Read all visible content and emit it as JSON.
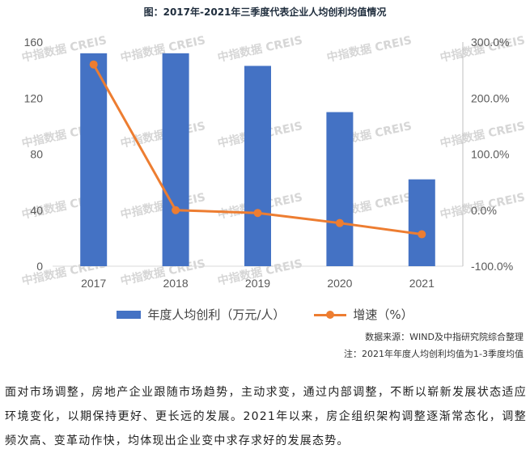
{
  "chart_title": "图：2017年-2021年三季度代表企业人均创利均值情况",
  "chart_data": {
    "type": "bar",
    "categories": [
      "2017",
      "2018",
      "2019",
      "2020",
      "2021"
    ],
    "series": [
      {
        "name": "年度人均创利（万元/人）",
        "type": "bar",
        "axis": "left",
        "values": [
          152,
          152,
          143,
          110,
          62
        ]
      },
      {
        "name": "增速（%）",
        "type": "line",
        "axis": "right",
        "values": [
          260,
          0,
          -5,
          -23,
          -43
        ]
      }
    ],
    "y_left": {
      "range": [
        0,
        160
      ],
      "ticks": [
        "0",
        "40",
        "80",
        "120",
        "160"
      ]
    },
    "y_right": {
      "range": [
        -100,
        300
      ],
      "ticks": [
        "-100.0%",
        "0.0%",
        "100.0%",
        "200.0%",
        "300.0%"
      ]
    },
    "grid": false,
    "legend_position": "bottom",
    "colors": {
      "bar": "#4472c4",
      "line": "#ed7d31"
    }
  },
  "watermark_text": "中指数据 CREIS",
  "source_text": "数据来源：WIND及中指研究院综合整理",
  "note_text": "注：2021年年度人均创利均值为1-3季度均值",
  "paragraph": "面对市场调整，房地产企业跟随市场趋势，主动求变，通过内部调整，不断以崭新发展状态适应环境变化，以期保持更好、更长远的发展。2021年以来，房企组织架构调整逐渐常态化，调整频次高、变革动作快，均体现出企业变中求存求好的发展态势。"
}
